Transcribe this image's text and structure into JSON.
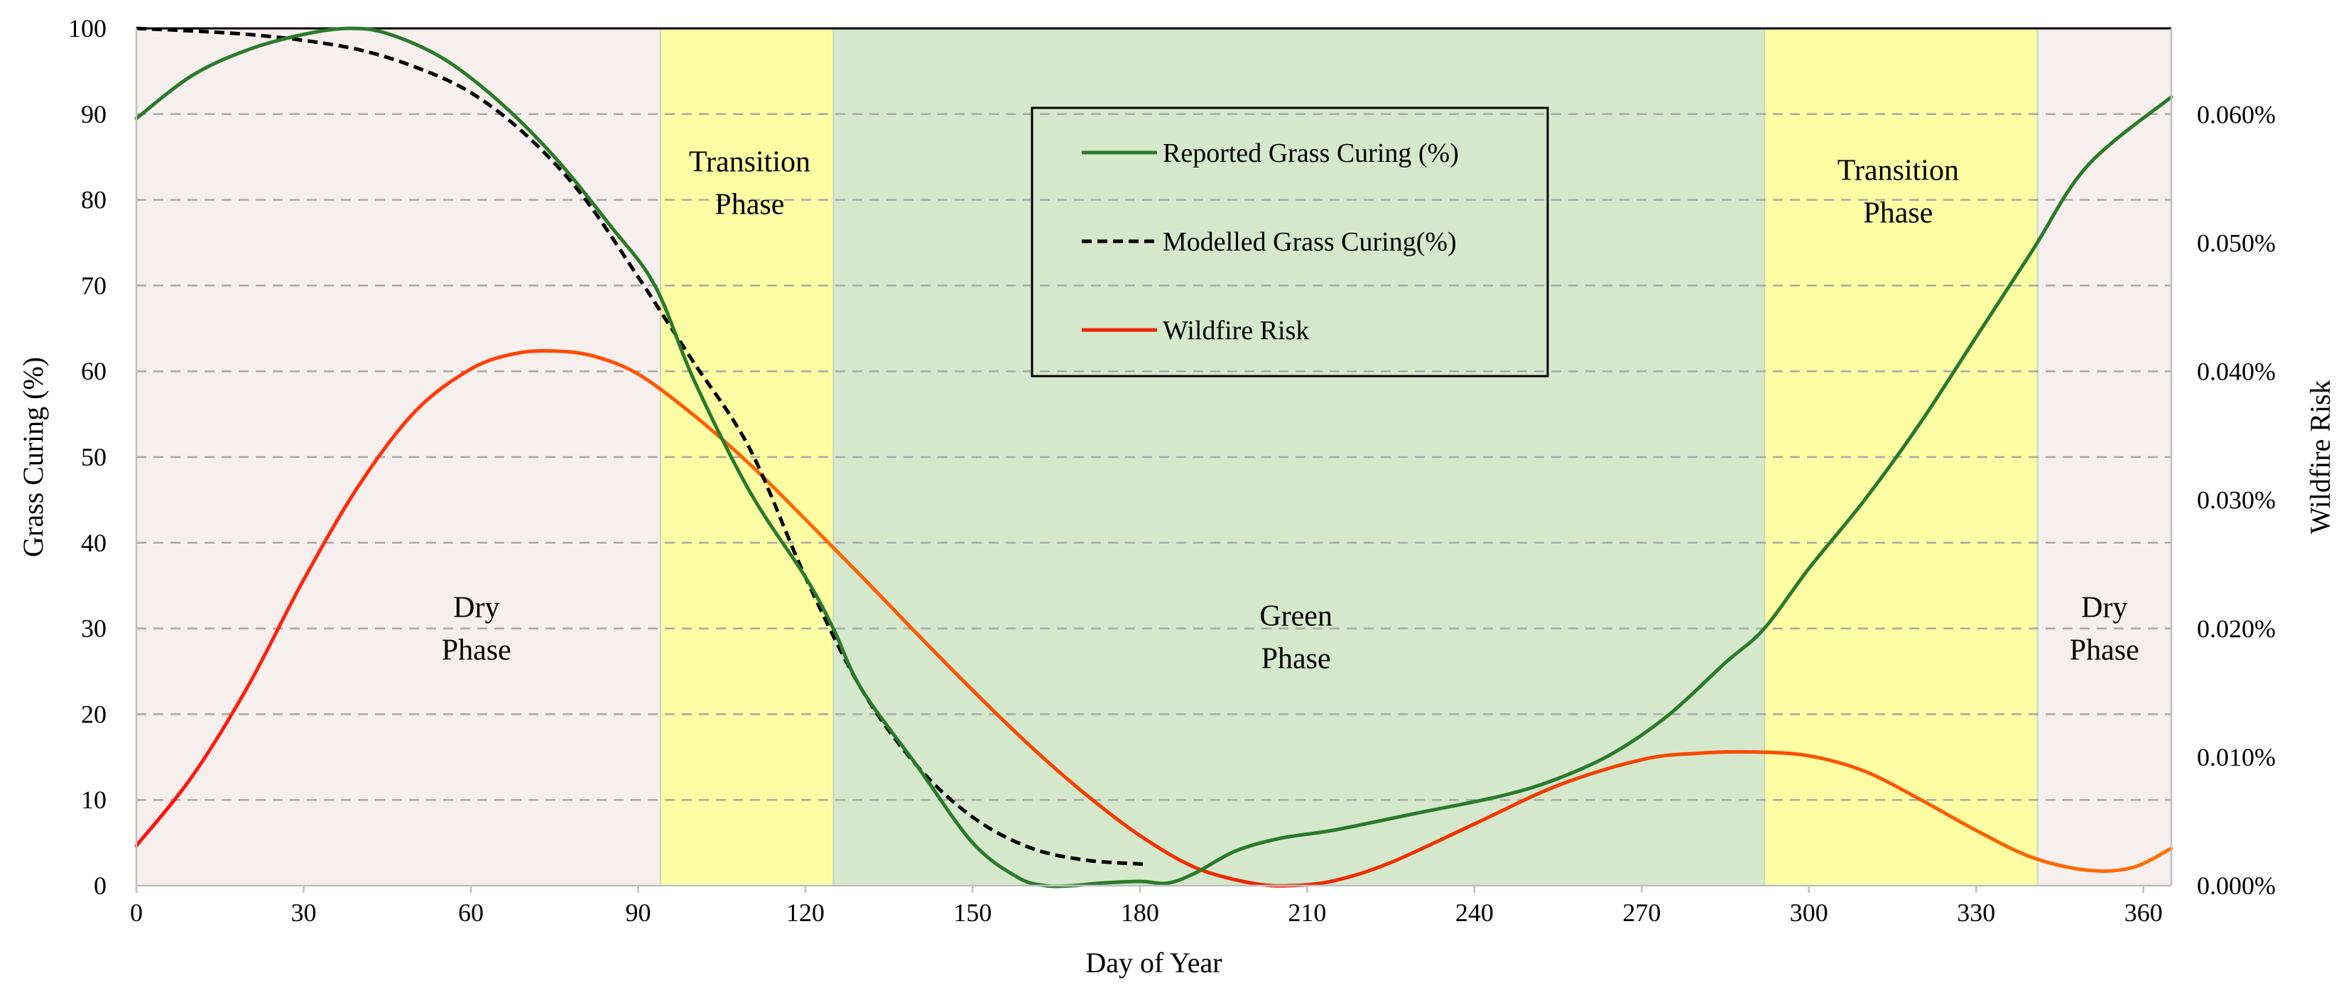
{
  "chart_data": {
    "type": "line",
    "title": "",
    "xlabel": "Day of Year",
    "ylabel": "Grass Curing (%)",
    "y2label": "Wildfire Risk",
    "xlim": [
      0,
      365
    ],
    "ylim": [
      0,
      100
    ],
    "y2lim": [
      0,
      0.0667
    ],
    "xticks": [
      0,
      30,
      60,
      90,
      120,
      150,
      180,
      210,
      240,
      270,
      300,
      330,
      360
    ],
    "yticks": [
      0,
      10,
      20,
      30,
      40,
      50,
      60,
      70,
      80,
      90,
      100
    ],
    "y2ticks": [
      {
        "value": 0.0,
        "label": "0.000%"
      },
      {
        "value": 0.01,
        "label": "0.010%"
      },
      {
        "value": 0.02,
        "label": "0.020%"
      },
      {
        "value": 0.03,
        "label": "0.030%"
      },
      {
        "value": 0.04,
        "label": "0.040%"
      },
      {
        "value": 0.05,
        "label": "0.050%"
      },
      {
        "value": 0.06,
        "label": "0.060%"
      }
    ],
    "grid": "horizontal dashed",
    "legend_position": "top-center",
    "phases": [
      {
        "name": "dry-start",
        "start": 0,
        "end": 94,
        "color": "#f6efed",
        "lines": [
          "Dry",
          "Phase"
        ],
        "label_x": 61,
        "label_y": 30
      },
      {
        "name": "transition-1",
        "start": 94,
        "end": 125,
        "color": "#fdfda4",
        "lines": [
          "Transition",
          "Phase"
        ],
        "label_x": 110,
        "label_y": 82
      },
      {
        "name": "green",
        "start": 125,
        "end": 292,
        "color": "#d5e8cc",
        "lines": [
          "Green",
          "Phase"
        ],
        "label_x": 208,
        "label_y": 29
      },
      {
        "name": "transition-2",
        "start": 292,
        "end": 341,
        "color": "#fdfda4",
        "lines": [
          "Transition",
          "Phase"
        ],
        "label_x": 316,
        "label_y": 81
      },
      {
        "name": "dry-end",
        "start": 341,
        "end": 365,
        "color": "#f6efed",
        "lines": [
          "Dry",
          "Phase"
        ],
        "label_x": 353,
        "label_y": 30
      }
    ],
    "series": [
      {
        "name": "Reported Grass Curing (%)",
        "axis": "left",
        "color": "#2a7a2a",
        "dash": "solid",
        "x": [
          0,
          10,
          20,
          30,
          38,
          45,
          55,
          65,
          75,
          85,
          93,
          100,
          110,
          120,
          125,
          130,
          140,
          150,
          158,
          163,
          168,
          173,
          180,
          185,
          190,
          197,
          205,
          215,
          230,
          245,
          255,
          265,
          275,
          285,
          292,
          300,
          310,
          320,
          330,
          340,
          350,
          365
        ],
        "y": [
          89.5,
          94.5,
          97.5,
          99.3,
          100,
          99.4,
          96.5,
          91.5,
          85,
          77,
          70,
          59,
          46,
          36,
          30,
          23,
          14,
          5,
          1,
          0,
          0,
          0.3,
          0.5,
          0.3,
          1.5,
          4,
          5.5,
          6.5,
          8.5,
          10.5,
          12.5,
          15.5,
          20,
          26,
          30,
          37,
          45,
          54,
          64,
          74,
          84,
          92
        ]
      },
      {
        "name": "Modelled Grass Curing(%)",
        "axis": "left",
        "color": "#000000",
        "dash": "dashed",
        "x": [
          0,
          10,
          20,
          30,
          40,
          50,
          60,
          70,
          80,
          90,
          95,
          100,
          110,
          120,
          130,
          140,
          150,
          160,
          170,
          181
        ],
        "y": [
          100,
          99.7,
          99.3,
          98.6,
          97.5,
          95.5,
          92.5,
          87.5,
          80.5,
          71,
          66,
          61,
          51,
          36,
          23,
          14,
          8,
          4.5,
          3,
          2.5
        ]
      },
      {
        "name": "Wildfire Risk",
        "axis": "right",
        "color": "#ee2200",
        "color_gradient": [
          "#ff1010",
          "#ff6a00",
          "#ee2200",
          "#ff7000"
        ],
        "dash": "solid",
        "x": [
          0,
          10,
          20,
          30,
          40,
          50,
          60,
          68,
          75,
          82,
          90,
          100,
          110,
          120,
          130,
          140,
          150,
          160,
          170,
          180,
          190,
          200,
          207,
          215,
          225,
          240,
          255,
          270,
          280,
          290,
          300,
          310,
          320,
          330,
          340,
          350,
          358,
          365
        ],
        "y": [
          0.0031,
          0.0085,
          0.0155,
          0.0238,
          0.0312,
          0.0369,
          0.0402,
          0.0414,
          0.0416,
          0.0412,
          0.0398,
          0.0366,
          0.0328,
          0.0285,
          0.0241,
          0.0196,
          0.0152,
          0.011,
          0.0072,
          0.0039,
          0.0014,
          0.0002,
          0.0,
          0.0004,
          0.0018,
          0.0048,
          0.0078,
          0.0098,
          0.0103,
          0.0104,
          0.0101,
          0.0089,
          0.0067,
          0.0043,
          0.0022,
          0.0012,
          0.0014,
          0.0029
        ]
      }
    ]
  }
}
